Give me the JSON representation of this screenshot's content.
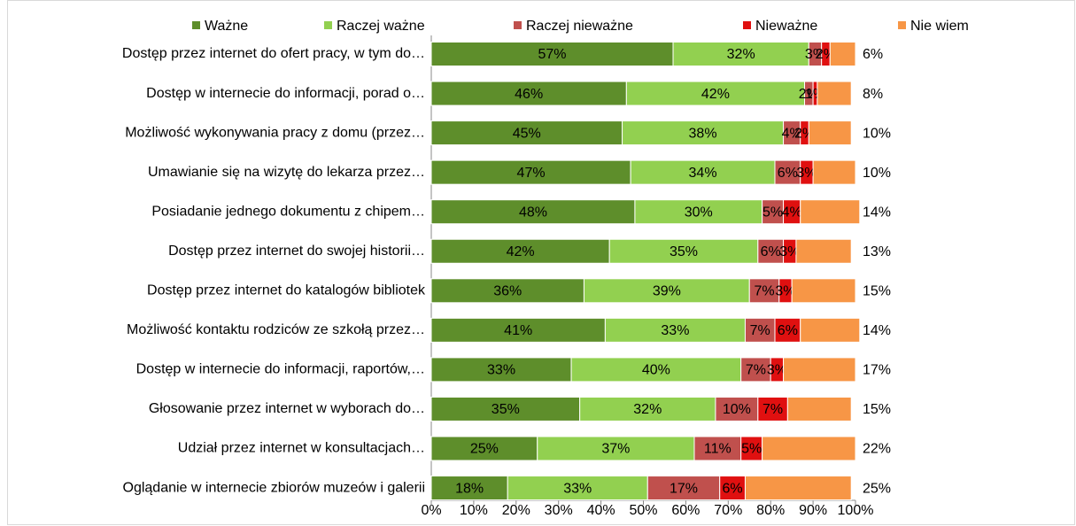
{
  "chart_data": {
    "type": "stacked_bar_horizontal",
    "categories": [
      "Dostęp przez internet do ofert pracy, w tym do…",
      "Dostęp w internecie do informacji, porad o…",
      "Możliwość wykonywania pracy z domu (przez…",
      "Umawianie się na wizytę do lekarza przez…",
      "Posiadanie jednego dokumentu z chipem…",
      "Dostęp przez internet do swojej historii…",
      "Dostęp przez internet do katalogów bibliotek",
      "Możliwość kontaktu rodziców ze szkołą przez…",
      "Dostęp w internecie do informacji, raportów,…",
      "Głosowanie przez internet w wyborach do…",
      "Udział przez internet w konsultacjach…",
      "Oglądanie w internecie zbiorów muzeów i galerii"
    ],
    "series": [
      {
        "name": "Ważne",
        "color": "#5e8e2b",
        "values": [
          57,
          46,
          45,
          47,
          48,
          42,
          36,
          41,
          33,
          35,
          25,
          18
        ],
        "value_labels": [
          "57%",
          "46%",
          "45%",
          "47%",
          "48%",
          "42%",
          "36%",
          "41%",
          "33%",
          "35%",
          "25%",
          "18%"
        ]
      },
      {
        "name": "Raczej ważne",
        "color": "#92d050",
        "values": [
          32,
          42,
          38,
          34,
          30,
          35,
          39,
          33,
          40,
          32,
          37,
          33
        ],
        "value_labels": [
          "32%",
          "42%",
          "38%",
          "34%",
          "30%",
          "35%",
          "39%",
          "33%",
          "40%",
          "32%",
          "37%",
          "33%"
        ]
      },
      {
        "name": "Raczej nieważne",
        "color": "#c0504d",
        "values": [
          3,
          2,
          4,
          6,
          5,
          6,
          7,
          7,
          7,
          10,
          11,
          17
        ],
        "value_labels": [
          "3%",
          "2%",
          "4%",
          "6%",
          "5%",
          "6%",
          "7%",
          "7%",
          "7%",
          "10%",
          "11%",
          "17%"
        ]
      },
      {
        "name": "Nieważne",
        "color": "#e01010",
        "values": [
          2,
          1,
          2,
          3,
          4,
          3,
          3,
          6,
          3,
          7,
          5,
          6
        ],
        "value_labels": [
          "2%",
          "1%",
          "2%",
          "3%",
          "4%",
          "3%",
          "3%",
          "6%",
          "3%",
          "7%",
          "5%",
          "6%"
        ]
      },
      {
        "name": "Nie wiem",
        "color": "#f79646",
        "values": [
          6,
          8,
          10,
          10,
          14,
          13,
          15,
          14,
          17,
          15,
          22,
          25
        ],
        "value_labels": [
          "6%",
          "8%",
          "10%",
          "10%",
          "14%",
          "13%",
          "15%",
          "14%",
          "17%",
          "15%",
          "22%",
          "25%"
        ]
      }
    ],
    "xlim": [
      0,
      100
    ],
    "xticks": [
      {
        "value": 0,
        "label": "0%"
      },
      {
        "value": 10,
        "label": "10%"
      },
      {
        "value": 20,
        "label": "20%"
      },
      {
        "value": 30,
        "label": "30%"
      },
      {
        "value": 40,
        "label": "40%"
      },
      {
        "value": 50,
        "label": "50%"
      },
      {
        "value": 60,
        "label": "60%"
      },
      {
        "value": 70,
        "label": "70%"
      },
      {
        "value": 80,
        "label": "80%"
      },
      {
        "value": 90,
        "label": "90%"
      },
      {
        "value": 100,
        "label": "100%"
      }
    ],
    "legend": "top"
  }
}
